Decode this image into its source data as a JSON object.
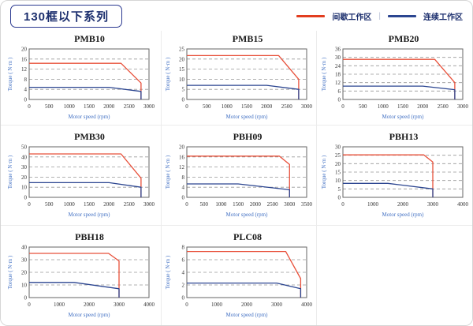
{
  "header": {
    "title": "130框以下系列",
    "legend": {
      "separator": "|",
      "items": [
        {
          "key": "intermittent",
          "label": "间歇工作区",
          "color": "#e23d1f"
        },
        {
          "key": "continuous",
          "label": "连续工作区",
          "color": "#2b4590"
        }
      ]
    }
  },
  "colors": {
    "intermittent_line": "#e8503a",
    "continuous_line": "#2b4590",
    "grid": "#999999",
    "plot_border": "#666666",
    "axis_label": "#4472c4"
  },
  "chart_data": [
    {
      "type": "line",
      "title": "PMB10",
      "xlabel": "Motor speed (rpm)",
      "ylabel": "Torque ( N·m )",
      "xlim": [
        0,
        3000
      ],
      "ylim": [
        0,
        20
      ],
      "xticks": [
        0,
        500,
        1000,
        1500,
        2000,
        2500,
        3000
      ],
      "yticks": [
        0,
        4,
        8,
        12,
        16,
        20
      ],
      "grid": "dashed-horizontal",
      "legend_position": "none",
      "series": [
        {
          "key": "intermittent",
          "name": "间歇工作区",
          "color": "#e8503a",
          "points": [
            [
              0,
              14.3
            ],
            [
              2300,
              14.3
            ],
            [
              2800,
              6.5
            ],
            [
              2800,
              0
            ]
          ]
        },
        {
          "key": "continuous",
          "name": "连续工作区",
          "color": "#2b4590",
          "points": [
            [
              0,
              4.8
            ],
            [
              2000,
              4.8
            ],
            [
              2800,
              3.2
            ],
            [
              2800,
              0
            ]
          ]
        }
      ]
    },
    {
      "type": "line",
      "title": "PMB15",
      "xlabel": "Motor speed (rpm)",
      "ylabel": "Torque ( N·m )",
      "xlim": [
        0,
        3000
      ],
      "ylim": [
        0,
        25
      ],
      "xticks": [
        0,
        500,
        1000,
        1500,
        2000,
        2500,
        3000
      ],
      "yticks": [
        0,
        5,
        10,
        15,
        20,
        25
      ],
      "grid": "dashed-horizontal",
      "legend_position": "none",
      "series": [
        {
          "key": "intermittent",
          "name": "间歇工作区",
          "color": "#e8503a",
          "points": [
            [
              0,
              21.7
            ],
            [
              2300,
              21.7
            ],
            [
              2800,
              10
            ],
            [
              2800,
              0
            ]
          ]
        },
        {
          "key": "continuous",
          "name": "连续工作区",
          "color": "#2b4590",
          "points": [
            [
              0,
              7
            ],
            [
              2000,
              7
            ],
            [
              2800,
              5
            ],
            [
              2800,
              0
            ]
          ]
        }
      ]
    },
    {
      "type": "line",
      "title": "PMB20",
      "xlabel": "Motor speed (rpm)",
      "ylabel": "Torque ( N·m )",
      "xlim": [
        0,
        3000
      ],
      "ylim": [
        0,
        36
      ],
      "xticks": [
        0,
        500,
        1000,
        1500,
        2000,
        2500,
        3000
      ],
      "yticks": [
        0,
        6,
        12,
        18,
        24,
        30,
        36
      ],
      "grid": "dashed-horizontal",
      "legend_position": "none",
      "series": [
        {
          "key": "intermittent",
          "name": "间歇工作区",
          "color": "#e8503a",
          "points": [
            [
              0,
              28.6
            ],
            [
              2300,
              28.6
            ],
            [
              2800,
              12
            ],
            [
              2800,
              0
            ]
          ]
        },
        {
          "key": "continuous",
          "name": "连续工作区",
          "color": "#2b4590",
          "points": [
            [
              0,
              9.5
            ],
            [
              2000,
              9.5
            ],
            [
              2800,
              7
            ],
            [
              2800,
              0
            ]
          ]
        }
      ]
    },
    {
      "type": "line",
      "title": "PMB30",
      "xlabel": "Motor speed (rpm)",
      "ylabel": "Torque ( N·m )",
      "xlim": [
        0,
        3000
      ],
      "ylim": [
        0,
        50
      ],
      "xticks": [
        0,
        500,
        1000,
        1500,
        2000,
        2500,
        3000
      ],
      "yticks": [
        0,
        10,
        20,
        30,
        40,
        50
      ],
      "grid": "dashed-horizontal",
      "legend_position": "none",
      "series": [
        {
          "key": "intermittent",
          "name": "间歇工作区",
          "color": "#e8503a",
          "points": [
            [
              0,
              43
            ],
            [
              2300,
              43
            ],
            [
              2800,
              19
            ],
            [
              2800,
              0
            ]
          ]
        },
        {
          "key": "continuous",
          "name": "连续工作区",
          "color": "#2b4590",
          "points": [
            [
              0,
              14.5
            ],
            [
              2000,
              14.5
            ],
            [
              2800,
              10
            ],
            [
              2800,
              0
            ]
          ]
        }
      ]
    },
    {
      "type": "line",
      "title": "PBH09",
      "xlabel": "Motor speed (rpm)",
      "ylabel": "Torque ( N·m )",
      "xlim": [
        0,
        3500
      ],
      "ylim": [
        0,
        20
      ],
      "xticks": [
        0,
        500,
        1000,
        1500,
        2000,
        2500,
        3000,
        3500
      ],
      "yticks": [
        0,
        4,
        8,
        12,
        16,
        20
      ],
      "grid": "dashed-horizontal",
      "legend_position": "none",
      "series": [
        {
          "key": "intermittent",
          "name": "间歇工作区",
          "color": "#e8503a",
          "points": [
            [
              0,
              16.3
            ],
            [
              2700,
              16.3
            ],
            [
              3000,
              13
            ],
            [
              3000,
              0
            ]
          ]
        },
        {
          "key": "continuous",
          "name": "连续工作区",
          "color": "#2b4590",
          "points": [
            [
              0,
              5.3
            ],
            [
              1500,
              5.3
            ],
            [
              3000,
              3
            ],
            [
              3000,
              0
            ]
          ]
        }
      ]
    },
    {
      "type": "line",
      "title": "PBH13",
      "xlabel": "Motor speed (rpm)",
      "ylabel": "Torque ( N·m )",
      "xlim": [
        0,
        4000
      ],
      "ylim": [
        0,
        30
      ],
      "xticks": [
        0,
        1000,
        2000,
        3000,
        4000
      ],
      "yticks": [
        0,
        5,
        10,
        15,
        20,
        25,
        30
      ],
      "grid": "dashed-horizontal",
      "legend_position": "none",
      "series": [
        {
          "key": "intermittent",
          "name": "间歇工作区",
          "color": "#e8503a",
          "points": [
            [
              0,
              25.2
            ],
            [
              2700,
              25.2
            ],
            [
              3000,
              21
            ],
            [
              3000,
              0
            ]
          ]
        },
        {
          "key": "continuous",
          "name": "连续工作区",
          "color": "#2b4590",
          "points": [
            [
              0,
              8.3
            ],
            [
              1500,
              8.3
            ],
            [
              3000,
              5
            ],
            [
              3000,
              0
            ]
          ]
        }
      ]
    },
    {
      "type": "line",
      "title": "PBH18",
      "xlabel": "Motor speed (rpm)",
      "ylabel": "Torque ( N·m )",
      "xlim": [
        0,
        4000
      ],
      "ylim": [
        0,
        40
      ],
      "xticks": [
        0,
        1000,
        2000,
        3000,
        4000
      ],
      "yticks": [
        0,
        10,
        20,
        30,
        40
      ],
      "grid": "dashed-horizontal",
      "legend_position": "none",
      "series": [
        {
          "key": "intermittent",
          "name": "间歇工作区",
          "color": "#e8503a",
          "points": [
            [
              0,
              35
            ],
            [
              2650,
              35
            ],
            [
              3000,
              29
            ],
            [
              3000,
              0
            ]
          ]
        },
        {
          "key": "continuous",
          "name": "连续工作区",
          "color": "#2b4590",
          "points": [
            [
              0,
              12
            ],
            [
              1500,
              12
            ],
            [
              3000,
              7
            ],
            [
              3000,
              0
            ]
          ]
        }
      ]
    },
    {
      "type": "line",
      "title": "PLC08",
      "xlabel": "Motor speed (rpm)",
      "ylabel": "Torque ( N·m )",
      "xlim": [
        0,
        4000
      ],
      "ylim": [
        0,
        8
      ],
      "xticks": [
        0,
        1000,
        2000,
        3000,
        4000
      ],
      "yticks": [
        0,
        2,
        4,
        6,
        8
      ],
      "grid": "dashed-horizontal",
      "legend_position": "none",
      "series": [
        {
          "key": "intermittent",
          "name": "间歇工作区",
          "color": "#e8503a",
          "points": [
            [
              0,
              7.3
            ],
            [
              3300,
              7.3
            ],
            [
              3800,
              3
            ],
            [
              3800,
              0
            ]
          ]
        },
        {
          "key": "continuous",
          "name": "连续工作区",
          "color": "#2b4590",
          "points": [
            [
              0,
              2.3
            ],
            [
              3000,
              2.3
            ],
            [
              3800,
              1.4
            ],
            [
              3800,
              0
            ]
          ]
        }
      ]
    }
  ]
}
